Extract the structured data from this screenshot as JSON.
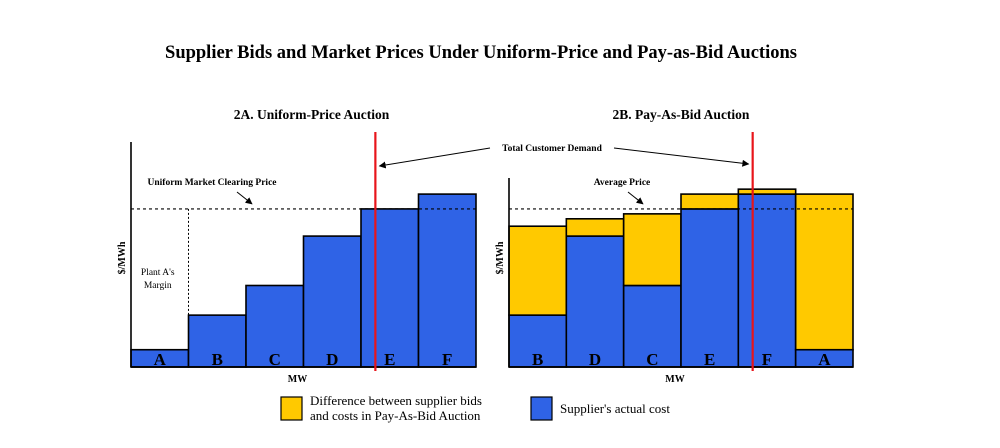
{
  "title": "Supplier Bids and Market Prices Under Uniform-Price and Pay-as-Bid Auctions",
  "demand_label": "Total Customer Demand",
  "colors": {
    "cost": "#2f63e6",
    "margin": "#ffc900",
    "demand": "#e8151b",
    "outline": "#000000"
  },
  "chart_data": [
    {
      "type": "bar",
      "title": "2A. Uniform-Price Auction",
      "xlabel": "MW",
      "ylabel": "$/MWh",
      "ylim": [
        0,
        100
      ],
      "categories": [
        "A",
        "B",
        "C",
        "D",
        "E",
        "F"
      ],
      "series": [
        {
          "values": [
            7,
            21,
            33,
            53,
            64,
            70
          ]
        }
      ],
      "reference_line": {
        "label": "Uniform Market Clearing Price",
        "value": 64
      },
      "demand_position": 4.25,
      "annotations": [
        {
          "text": "Plant A's Margin",
          "category": "A"
        }
      ]
    },
    {
      "type": "bar",
      "stacked": true,
      "title": "2B. Pay-As-Bid Auction",
      "xlabel": "MW",
      "ylabel": "$/MWh",
      "ylim": [
        0,
        100
      ],
      "categories": [
        "B",
        "D",
        "C",
        "E",
        "F",
        "A"
      ],
      "series": [
        {
          "name": "Supplier's actual cost",
          "values": [
            21,
            53,
            33,
            64,
            70,
            7
          ]
        },
        {
          "name": "Difference between supplier bids and costs in Pay-As-Bid Auction",
          "values": [
            36,
            7,
            29,
            6,
            2,
            63
          ]
        }
      ],
      "reference_line": {
        "label": "Average Price",
        "value": 64
      },
      "demand_position": 4.25
    }
  ],
  "legend": [
    {
      "key": "margin",
      "lines": [
        "Difference between supplier bids",
        "and costs in Pay-As-Bid Auction"
      ]
    },
    {
      "key": "cost",
      "lines": [
        "Supplier's actual cost"
      ]
    }
  ]
}
